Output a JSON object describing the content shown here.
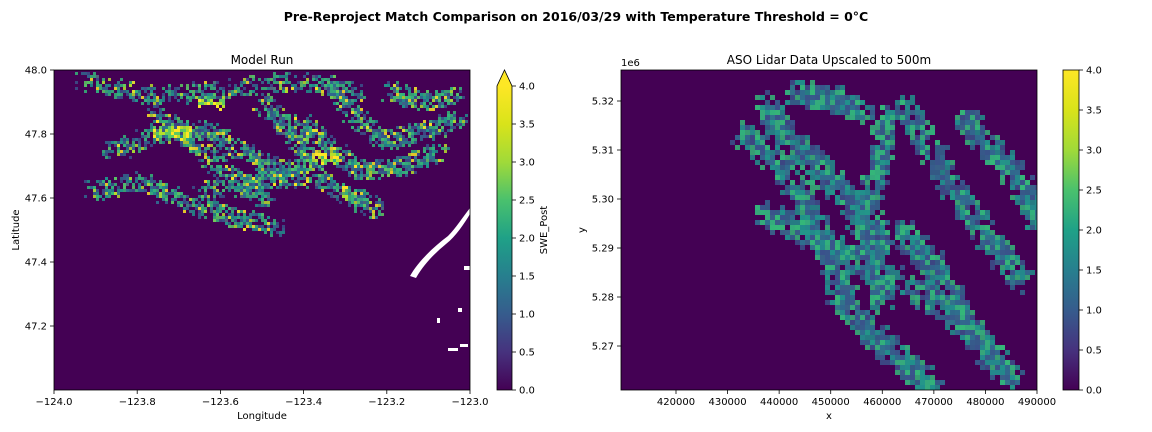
{
  "figure": {
    "suptitle": "Pre-Reproject Match Comparison on 2016/03/29 with Temperature Threshold = 0°C"
  },
  "chart_data": [
    {
      "type": "heatmap",
      "title": "Model Run",
      "xlabel": "Longitude",
      "ylabel": "Latitude",
      "xlim": [
        -124.0,
        -123.0
      ],
      "ylim": [
        47.0,
        48.0
      ],
      "x_ticks": [
        "−124.0",
        "−123.8",
        "−123.6",
        "−123.4",
        "−123.2",
        "−123.0"
      ],
      "y_ticks": [
        "47.2",
        "47.4",
        "47.6",
        "47.8",
        "48.0"
      ],
      "colorbar": {
        "label": "SWE_Post",
        "range": [
          0.0,
          4.0
        ],
        "extend": "max",
        "ticks": [
          "0.0",
          "0.5",
          "1.0",
          "1.5",
          "2.0",
          "2.5",
          "3.0",
          "3.5",
          "4.0"
        ]
      },
      "colormap": "viridis",
      "nan_color": "#ffffff"
    },
    {
      "type": "heatmap",
      "title": "ASO Lidar Data Upscaled to 500m",
      "xlabel": "x",
      "ylabel": "y",
      "y_offset_label": "1e6",
      "xlim": [
        412000,
        490000
      ],
      "ylim": [
        5.261,
        5.3265
      ],
      "x_ticks": [
        "420000",
        "430000",
        "440000",
        "450000",
        "460000",
        "470000",
        "480000",
        "490000"
      ],
      "y_ticks": [
        "5.27",
        "5.28",
        "5.29",
        "5.30",
        "5.31",
        "5.32"
      ],
      "colorbar": {
        "label": "",
        "range": [
          0.0,
          4.0
        ],
        "ticks": [
          "0.0",
          "0.5",
          "1.0",
          "1.5",
          "2.0",
          "2.5",
          "3.0",
          "3.5",
          "4.0"
        ]
      },
      "colormap": "viridis"
    }
  ]
}
